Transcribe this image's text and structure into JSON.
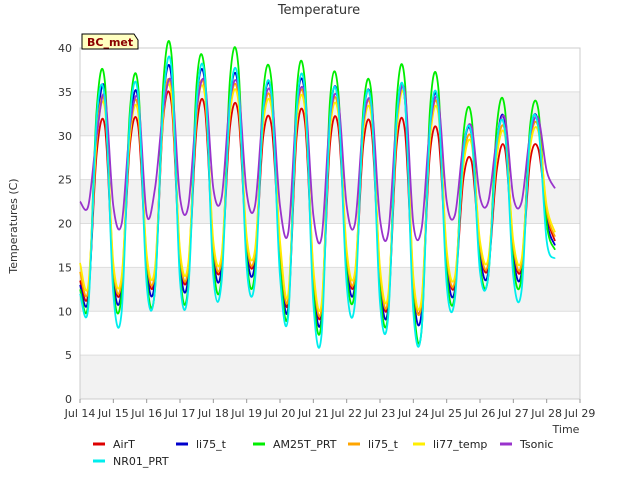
{
  "chart_data": {
    "type": "line",
    "title": "Temperature",
    "xlabel": "Time",
    "ylabel": "Temperatures (C)",
    "badge": "BC_met",
    "xlim": [
      14,
      29
    ],
    "ylim": [
      0,
      40
    ],
    "x_ticks": [
      14,
      15,
      16,
      17,
      18,
      19,
      20,
      21,
      22,
      23,
      24,
      25,
      26,
      27,
      28,
      29
    ],
    "x_tick_labels": [
      "Jul 14",
      "Jul 15",
      "Jul 16",
      "Jul 17",
      "Jul 18",
      "Jul 19",
      "Jul 20",
      "Jul 21",
      "Jul 22",
      "Jul 23",
      "Jul 24",
      "Jul 25",
      "Jul 26",
      "Jul 27",
      "Jul 28",
      "Jul 29"
    ],
    "y_ticks": [
      0,
      5,
      10,
      15,
      20,
      25,
      30,
      35,
      40
    ],
    "y_tick_labels": [
      "0",
      "5",
      "10",
      "15",
      "20",
      "25",
      "30",
      "35",
      "40"
    ],
    "grid": true,
    "background_bands": true,
    "legend_position": "bottom",
    "x": [
      14.0,
      14.25,
      14.5,
      14.75,
      15.0,
      15.25,
      15.5,
      15.75,
      16.0,
      16.25,
      16.5,
      16.75,
      17.0,
      17.25,
      17.5,
      17.75,
      18.0,
      18.25,
      18.5,
      18.75,
      19.0,
      19.25,
      19.5,
      19.75,
      20.0,
      20.25,
      20.5,
      20.75,
      21.0,
      21.25,
      21.5,
      21.75,
      22.0,
      22.25,
      22.5,
      22.75,
      23.0,
      23.25,
      23.5,
      23.75,
      24.0,
      24.25,
      24.5,
      24.75,
      25.0,
      25.25,
      25.5,
      25.75,
      26.0,
      26.25,
      26.5,
      26.75,
      27.0,
      27.25,
      27.5,
      27.75,
      28.0,
      28.25
    ],
    "series": [
      {
        "name": "AirT",
        "color": "#dd0000",
        "values": [
          13.5,
          12.0,
          28.0,
          31.0,
          14.5,
          13.0,
          29.0,
          31.0,
          15.5,
          14.0,
          32.0,
          33.5,
          16.0,
          14.5,
          31.0,
          33.0,
          17.0,
          15.5,
          31.0,
          32.5,
          17.5,
          16.0,
          30.0,
          31.0,
          17.0,
          11.0,
          30.0,
          31.5,
          14.0,
          10.0,
          29.0,
          31.0,
          16.0,
          13.5,
          29.0,
          30.5,
          14.0,
          11.0,
          29.0,
          30.5,
          13.0,
          11.0,
          28.0,
          30.0,
          16.0,
          13.0,
          25.0,
          27.0,
          17.0,
          15.0,
          26.0,
          28.5,
          17.0,
          15.0,
          27.0,
          28.5,
          21.0,
          18.0
        ]
      },
      {
        "name": "li75_t",
        "color": "#0000cc",
        "values": [
          13.0,
          11.5,
          30.0,
          35.0,
          14.0,
          12.5,
          31.0,
          34.0,
          15.0,
          13.5,
          34.0,
          36.5,
          15.5,
          14.0,
          34.0,
          36.0,
          16.5,
          15.0,
          34.0,
          35.5,
          17.0,
          15.5,
          33.0,
          34.5,
          16.5,
          10.5,
          33.0,
          34.5,
          13.5,
          9.5,
          32.0,
          34.0,
          15.5,
          13.0,
          32.0,
          33.5,
          13.5,
          10.5,
          32.0,
          34.0,
          12.5,
          10.0,
          31.0,
          33.5,
          15.5,
          12.5,
          28.0,
          30.0,
          16.5,
          14.5,
          29.0,
          31.5,
          16.5,
          14.5,
          30.0,
          31.5,
          20.5,
          17.5
        ]
      },
      {
        "name": "AM25T_PRT",
        "color": "#00ee00",
        "values": [
          12.5,
          11.0,
          33.0,
          36.0,
          13.0,
          12.0,
          33.0,
          35.5,
          14.0,
          12.5,
          36.0,
          39.0,
          14.5,
          13.0,
          36.0,
          37.0,
          15.5,
          14.0,
          36.5,
          38.0,
          16.0,
          14.5,
          35.0,
          36.0,
          15.5,
          10.0,
          35.0,
          36.0,
          12.5,
          9.0,
          34.0,
          35.0,
          14.5,
          12.5,
          33.0,
          34.5,
          12.5,
          10.0,
          34.0,
          36.0,
          11.5,
          8.0,
          33.0,
          35.5,
          14.5,
          12.0,
          30.0,
          32.0,
          15.5,
          14.0,
          31.0,
          33.0,
          15.5,
          14.0,
          31.0,
          33.0,
          20.0,
          17.0
        ]
      },
      {
        "name": "li75_t",
        "color": "#ffa500",
        "values": [
          14.5,
          12.5,
          30.0,
          33.5,
          15.0,
          13.5,
          30.5,
          33.0,
          16.0,
          14.5,
          33.0,
          35.0,
          16.5,
          15.0,
          33.0,
          35.0,
          17.5,
          16.0,
          33.0,
          34.5,
          18.0,
          16.5,
          32.0,
          33.5,
          17.5,
          11.5,
          32.0,
          33.5,
          14.5,
          10.5,
          31.0,
          33.0,
          16.5,
          14.0,
          31.0,
          32.5,
          14.5,
          11.5,
          31.0,
          34.5,
          13.5,
          11.0,
          30.0,
          33.0,
          16.5,
          13.5,
          27.0,
          29.5,
          17.5,
          15.5,
          28.0,
          30.5,
          17.5,
          15.5,
          29.0,
          31.0,
          21.5,
          18.5
        ]
      },
      {
        "name": "li77_temp",
        "color": "#ffee00",
        "values": [
          15.5,
          13.0,
          29.5,
          33.0,
          15.5,
          14.0,
          30.0,
          32.5,
          16.5,
          15.0,
          32.5,
          34.5,
          17.0,
          15.5,
          32.5,
          34.5,
          18.0,
          16.5,
          32.5,
          34.0,
          18.5,
          17.0,
          31.5,
          33.0,
          18.0,
          12.0,
          31.5,
          33.0,
          15.0,
          11.0,
          30.5,
          32.5,
          17.0,
          14.5,
          30.5,
          32.0,
          15.0,
          12.0,
          30.5,
          34.0,
          14.0,
          11.5,
          29.5,
          32.5,
          17.0,
          14.0,
          26.5,
          29.0,
          18.0,
          16.0,
          27.5,
          30.0,
          18.0,
          16.0,
          28.5,
          30.5,
          22.0,
          19.0
        ]
      },
      {
        "name": "Tsonic",
        "color": "#9933cc",
        "values": [
          22.5,
          22.0,
          30.0,
          34.5,
          22.0,
          20.0,
          31.0,
          34.0,
          21.0,
          24.0,
          33.0,
          36.0,
          23.0,
          22.0,
          33.0,
          36.0,
          24.0,
          23.0,
          34.0,
          35.5,
          23.5,
          22.0,
          33.0,
          34.5,
          22.0,
          19.0,
          33.0,
          34.5,
          21.0,
          18.5,
          32.0,
          34.0,
          22.0,
          20.0,
          31.5,
          33.5,
          20.5,
          19.0,
          32.0,
          35.0,
          20.0,
          19.5,
          31.0,
          34.0,
          22.5,
          21.0,
          29.0,
          31.0,
          23.0,
          22.5,
          29.5,
          32.0,
          23.0,
          22.5,
          30.0,
          32.0,
          26.0,
          24.0
        ]
      },
      {
        "name": "NR01_PRT",
        "color": "#00eeee",
        "values": [
          12.0,
          10.5,
          32.0,
          34.0,
          12.0,
          10.0,
          32.0,
          34.5,
          13.0,
          12.5,
          34.0,
          37.5,
          13.5,
          12.5,
          34.0,
          36.5,
          14.0,
          13.5,
          34.0,
          36.0,
          15.0,
          13.5,
          33.0,
          34.5,
          14.0,
          9.5,
          33.0,
          35.0,
          11.0,
          7.5,
          32.0,
          33.5,
          13.0,
          11.0,
          32.0,
          33.0,
          11.0,
          9.5,
          32.0,
          34.0,
          10.0,
          8.0,
          31.0,
          33.5,
          13.0,
          11.5,
          28.0,
          30.0,
          14.5,
          14.0,
          29.0,
          30.5,
          14.0,
          12.5,
          30.0,
          31.0,
          18.0,
          16.0
        ]
      }
    ]
  }
}
